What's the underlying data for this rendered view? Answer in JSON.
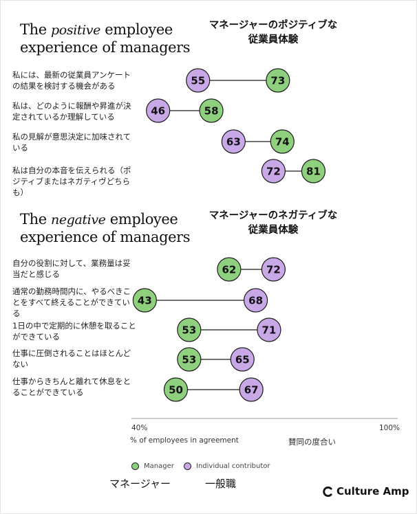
{
  "chart_data": [
    {
      "type": "dumbbell",
      "title_en": {
        "pre": "The ",
        "em": "positive",
        "post": " employee",
        "line2": "experience of managers"
      },
      "title_jp": [
        "マネージャーのポジティブな",
        "従業員体験"
      ],
      "rows": [
        {
          "label": "私には、最新の従業員アンケートの結果を検討する機会がある",
          "manager": 73,
          "ic": 55
        },
        {
          "label": "私は、どのように報酬や昇進が決定されているか理解している",
          "manager": 58,
          "ic": 46
        },
        {
          "label": "私の見解が意思決定に加味されている",
          "manager": 74,
          "ic": 63
        },
        {
          "label": "私は自分の本音を伝えられる（ポジティブまたはネガティヴどちらも）",
          "manager": 81,
          "ic": 72
        }
      ]
    },
    {
      "type": "dumbbell",
      "title_en": {
        "pre": "The ",
        "em": "negative",
        "post": " employee",
        "line2": "experience of managers"
      },
      "title_jp": [
        "マネージャーのネガティブな",
        "従業員体験"
      ],
      "rows": [
        {
          "label": "自分の役割に対して、業務量は妥当だと感じる",
          "manager": 62,
          "ic": 72
        },
        {
          "label": "通常の勤務時間内に、やるべきことをすべて終えることができている",
          "manager": 43,
          "ic": 68
        },
        {
          "label": "1日の中で定期的に休憩を取ることができている",
          "manager": 53,
          "ic": 71
        },
        {
          "label": "仕事に圧倒されることはほとんどない",
          "manager": 53,
          "ic": 65
        },
        {
          "label": "仕事からきちんと離れて休息をとることができている",
          "manager": 50,
          "ic": 67
        }
      ]
    }
  ],
  "axis": {
    "min_label": "40%",
    "max_label": "100%",
    "xlabel": "% of employees in agreement",
    "xlabel_jp": "賛同の度合い",
    "xlim": [
      40,
      100
    ]
  },
  "legend": {
    "manager": "Manager",
    "ic": "Individual contributor",
    "manager_jp": "マネージャー",
    "ic_jp": "一般職"
  },
  "colors": {
    "manager": "#8fd07e",
    "ic": "#c9a8e8",
    "outline": "#1a1a1a",
    "line": "#1a1a1a",
    "axis": "#9a9a9a"
  },
  "brand": "Culture Amp"
}
